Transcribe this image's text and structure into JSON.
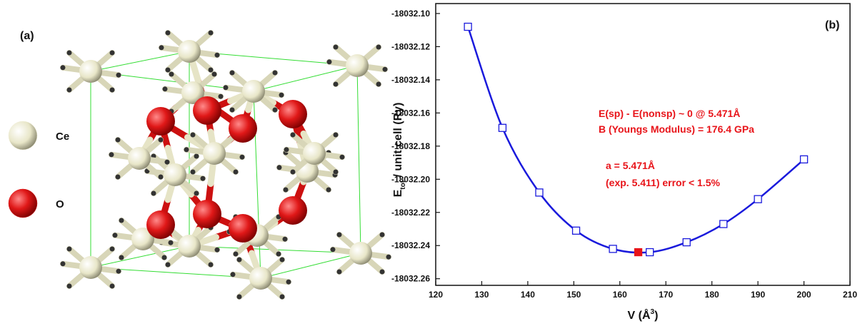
{
  "structure": {
    "panel_label": "(a)",
    "legend": [
      {
        "label": "Ce",
        "color": "#f2f0d8"
      },
      {
        "label": "O",
        "color": "#e01818"
      }
    ]
  },
  "chart_data": {
    "type": "line",
    "panel_label": "(b)",
    "x_label": {
      "main": "V (Å",
      "sup": "3",
      "end": ")"
    },
    "y_label": {
      "main": "E",
      "sub": "tot",
      "rest": " / unit cell (Ry)"
    },
    "annotations": [
      "E(sp) - E(nonsp) ~ 0 @ 5.471Å",
      "B (Youngs Modulus) = 176.4 GPa",
      "a = 5.471Å",
      "(exp. 5.411) error < 1.5%"
    ],
    "xlim": [
      120,
      210
    ],
    "xticks": [
      120,
      130,
      140,
      150,
      160,
      170,
      180,
      190,
      200,
      210
    ],
    "ylim": [
      -18032.264,
      -18032.094
    ],
    "yticks": [
      {
        "value": -18032.1,
        "label": "-18032.10"
      },
      -18032.12,
      -18032.14,
      -18032.16,
      -18032.18,
      {
        "value": -18032.2,
        "label": "-18032.20"
      },
      -18032.22,
      -18032.24,
      -18032.26
    ],
    "series": [
      {
        "x": [
          127,
          134.5,
          142.5,
          150.5,
          158.5,
          166.5,
          174.5,
          182.5,
          190,
          200
        ],
        "values": [
          -18032.108,
          -18032.169,
          -18032.208,
          -18032.231,
          -18032.242,
          -18032.244,
          -18032.238,
          -18032.227,
          -18032.212,
          -18032.188
        ],
        "color": "#1a1adc",
        "marker": "square-open",
        "line": true
      },
      {
        "x": [
          164
        ],
        "values": [
          -18032.244
        ],
        "color": "#e8141a",
        "marker": "square-filled",
        "line": false
      }
    ]
  }
}
